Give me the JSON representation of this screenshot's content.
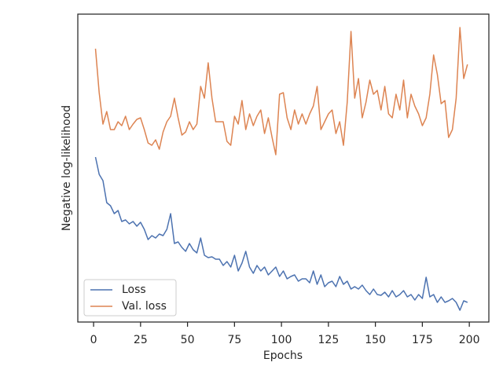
{
  "chart_data": {
    "type": "line",
    "xlabel": "Epochs",
    "ylabel": "Negative log-likelihood",
    "x": [
      1,
      3,
      5,
      7,
      9,
      11,
      13,
      15,
      17,
      19,
      21,
      23,
      25,
      27,
      29,
      31,
      33,
      35,
      37,
      39,
      41,
      43,
      45,
      47,
      49,
      51,
      53,
      55,
      57,
      59,
      61,
      63,
      65,
      67,
      69,
      71,
      73,
      75,
      77,
      79,
      81,
      83,
      85,
      87,
      89,
      91,
      93,
      95,
      97,
      99,
      101,
      103,
      105,
      107,
      109,
      111,
      113,
      115,
      117,
      119,
      121,
      123,
      125,
      127,
      129,
      131,
      133,
      135,
      137,
      139,
      141,
      143,
      145,
      147,
      149,
      151,
      153,
      155,
      157,
      159,
      161,
      163,
      165,
      167,
      169,
      171,
      173,
      175,
      177,
      179,
      181,
      183,
      185,
      187,
      189,
      191,
      193,
      195,
      197,
      199
    ],
    "series": [
      {
        "name": "Loss",
        "color": "#4c72b0",
        "values": [
          210,
          188,
          180,
          152,
          148,
          138,
          142,
          128,
          130,
          125,
          128,
          122,
          127,
          118,
          105,
          110,
          107,
          112,
          110,
          118,
          138,
          100,
          102,
          95,
          90,
          100,
          92,
          88,
          107,
          85,
          82,
          83,
          80,
          80,
          72,
          77,
          70,
          85,
          65,
          75,
          90,
          70,
          62,
          72,
          65,
          70,
          60,
          65,
          70,
          58,
          65,
          55,
          58,
          60,
          52,
          55,
          55,
          50,
          65,
          48,
          60,
          45,
          50,
          52,
          45,
          58,
          48,
          52,
          42,
          45,
          42,
          47,
          40,
          35,
          42,
          35,
          34,
          38,
          32,
          40,
          32,
          35,
          40,
          32,
          35,
          28,
          35,
          30,
          57,
          32,
          35,
          25,
          32,
          25,
          27,
          30,
          25,
          15,
          27,
          25
        ]
      },
      {
        "name": "Val. loss",
        "color": "#dd8452",
        "values": [
          348,
          292,
          252,
          268,
          245,
          245,
          255,
          250,
          262,
          245,
          252,
          258,
          260,
          245,
          228,
          225,
          232,
          220,
          242,
          255,
          262,
          285,
          260,
          238,
          242,
          255,
          245,
          252,
          300,
          285,
          330,
          285,
          255,
          255,
          255,
          230,
          225,
          262,
          252,
          282,
          245,
          265,
          250,
          262,
          270,
          240,
          260,
          235,
          213,
          290,
          292,
          260,
          245,
          270,
          252,
          265,
          252,
          265,
          275,
          300,
          245,
          255,
          265,
          270,
          240,
          255,
          225,
          280,
          370,
          285,
          310,
          260,
          280,
          308,
          290,
          295,
          270,
          300,
          265,
          260,
          290,
          270,
          308,
          260,
          290,
          275,
          265,
          250,
          260,
          290,
          340,
          315,
          278,
          282,
          235,
          245,
          285,
          375,
          310,
          328
        ]
      }
    ],
    "xlim": [
      -8.4,
      210.4
    ],
    "xticks": [
      0,
      25,
      50,
      75,
      100,
      125,
      150,
      175,
      200
    ],
    "ylim": [
      0,
      392
    ],
    "legend": "lower left"
  }
}
